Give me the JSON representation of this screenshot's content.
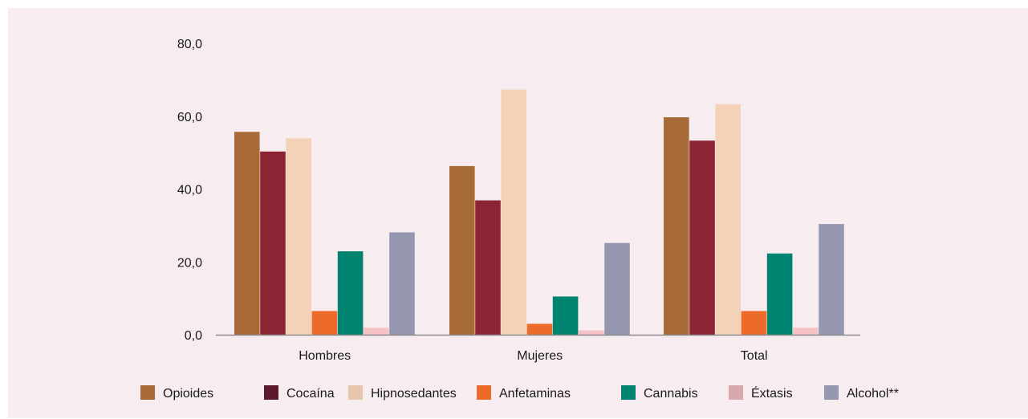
{
  "chart_data": {
    "type": "bar",
    "title": "",
    "xlabel": "",
    "ylabel": "",
    "categories": [
      "Hombres",
      "Mujeres",
      "Total"
    ],
    "ylim": [
      0,
      80
    ],
    "yticks": [
      "0,0",
      "20,0",
      "40,0",
      "60,0",
      "80,0"
    ],
    "grid": false,
    "legend_position": "bottom",
    "series": [
      {
        "name": "Opioides",
        "color": "#a86a36",
        "values": [
          55.7,
          46.3,
          59.7
        ]
      },
      {
        "name": "Cocaína",
        "color": "#8b2533",
        "values": [
          50.3,
          36.9,
          53.3
        ]
      },
      {
        "name": "Hipnosedantes",
        "color": "#f3d2b8",
        "values": [
          53.9,
          67.3,
          63.3
        ]
      },
      {
        "name": "Anfetaminas",
        "color": "#ec6a2a",
        "values": [
          6.5,
          3.0,
          6.5
        ]
      },
      {
        "name": "Cannabis",
        "color": "#00846f",
        "values": [
          22.9,
          10.5,
          22.3
        ]
      },
      {
        "name": "Éxtasis",
        "color": "#f6c2c5",
        "values": [
          1.9,
          1.2,
          1.9
        ]
      },
      {
        "name": "Alcohol**",
        "color": "#9597b1",
        "values": [
          28.1,
          25.2,
          30.4
        ]
      }
    ],
    "legend_swatch_colors": {
      "Cocaína": "#5c1a2c",
      "Hipnosedantes": "#e7c6ac",
      "Éxtasis": "#dba7af"
    }
  }
}
